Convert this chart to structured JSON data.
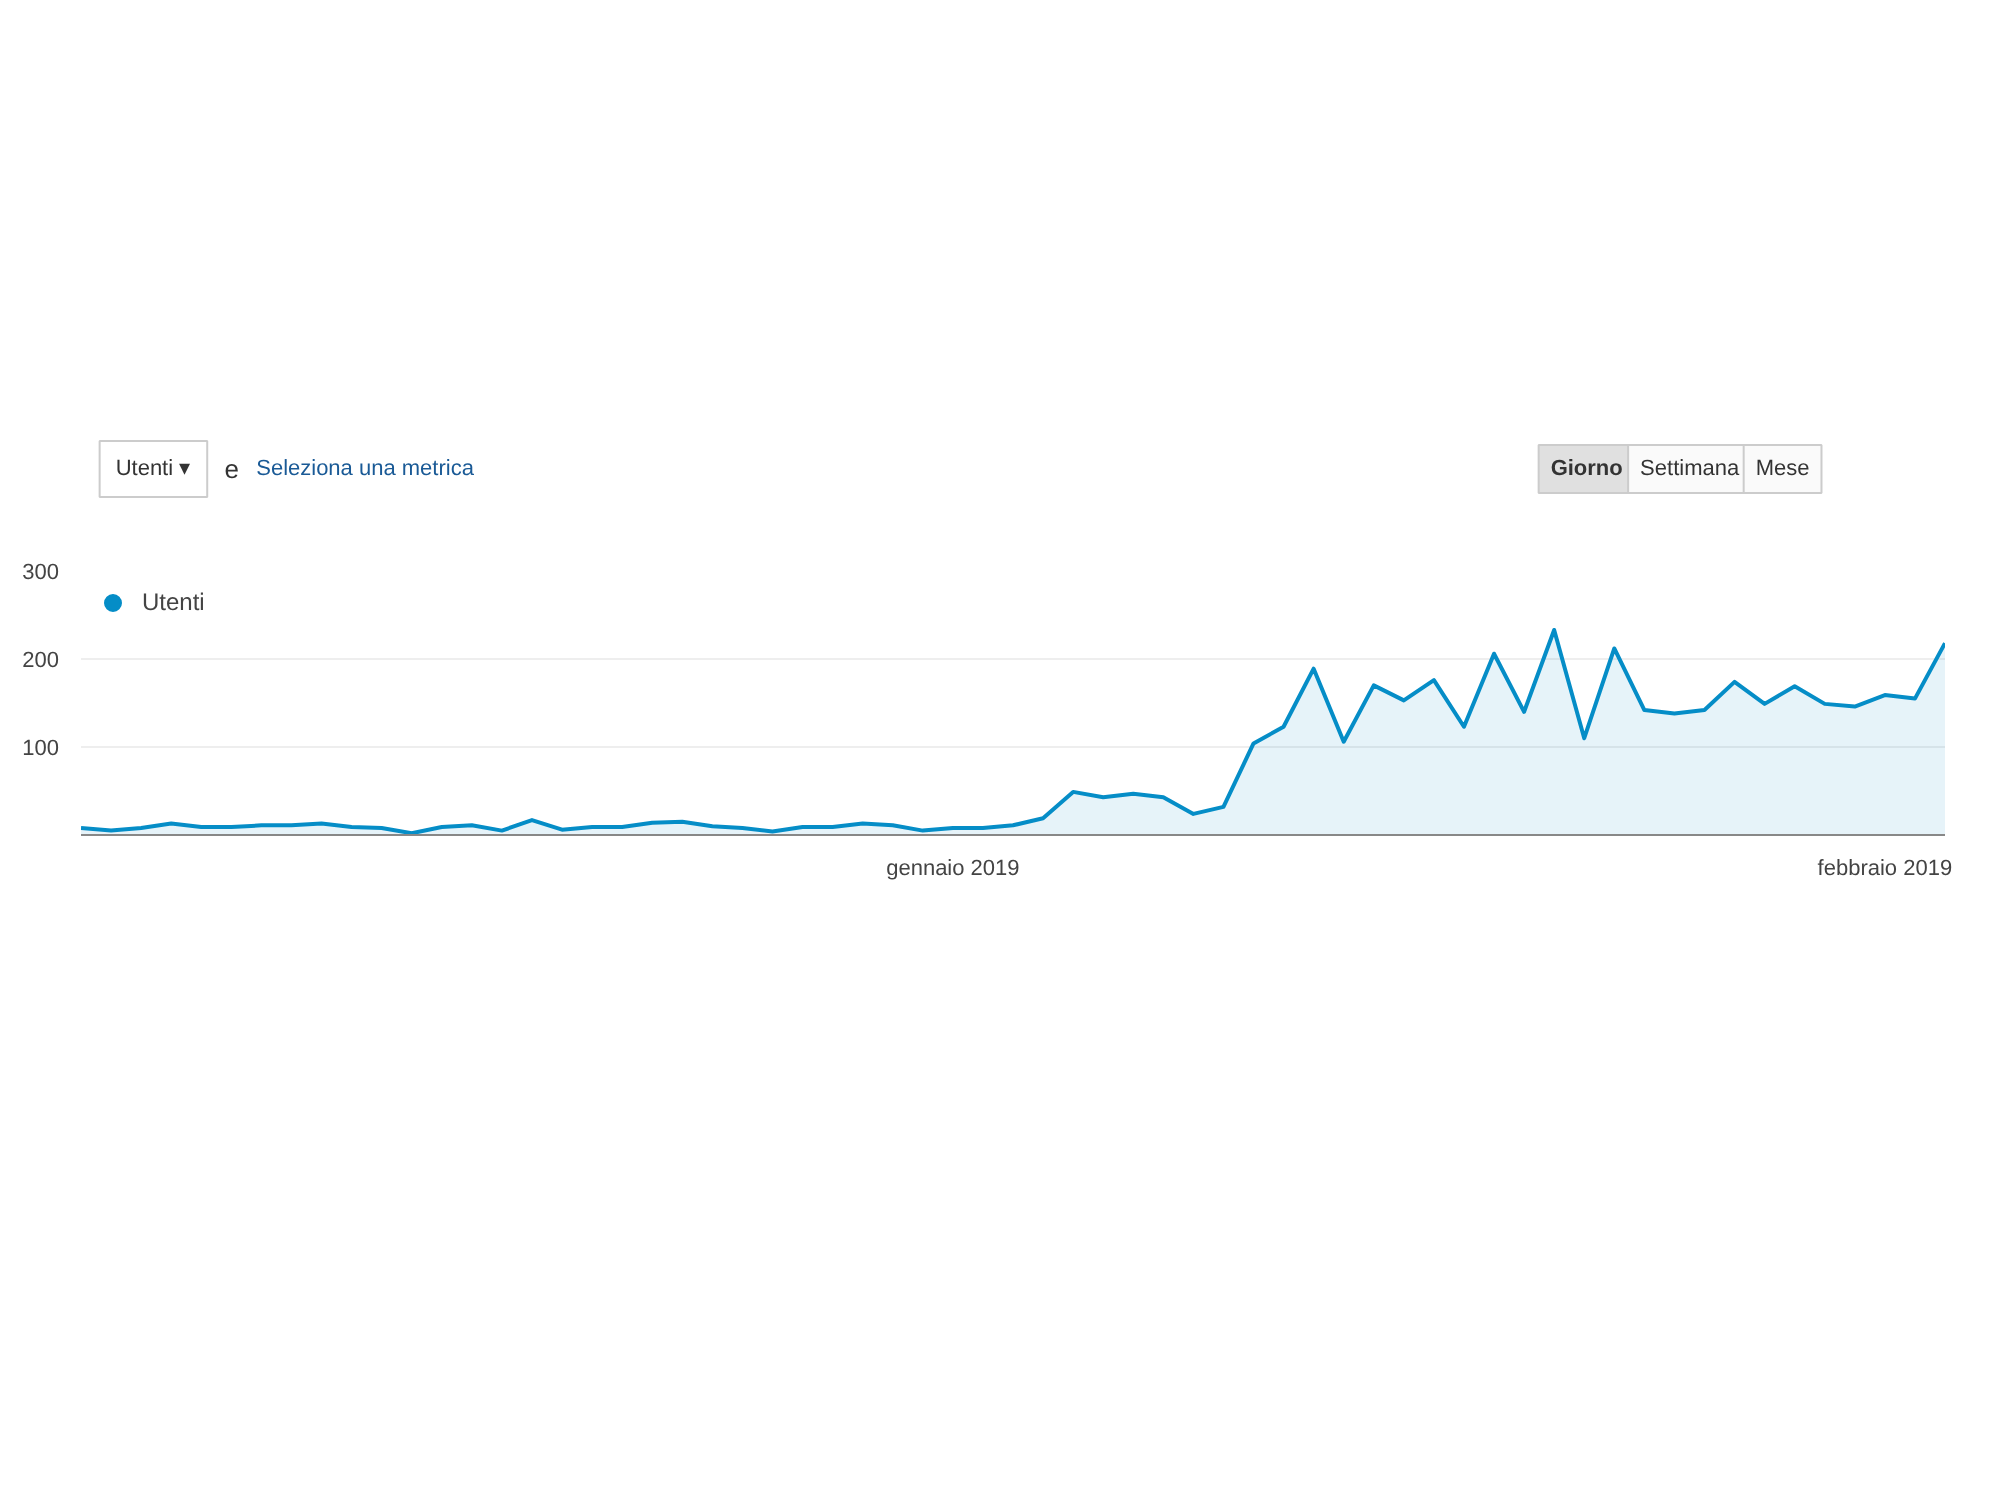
{
  "chart_data": {
    "type": "area",
    "annotations": [
      "Utenti ▾",
      "e",
      "Seleziona una metrica",
      "Giorno",
      "Settimana",
      "Mese"
    ],
    "x": [
      "2018-12-03",
      "2018-12-04",
      "2018-12-05",
      "2018-12-06",
      "2018-12-07",
      "2018-12-08",
      "2018-12-09",
      "2018-12-10",
      "2018-12-11",
      "2018-12-12",
      "2018-12-13",
      "2018-12-14",
      "2018-12-15",
      "2018-12-16",
      "2018-12-17",
      "2018-12-18",
      "2018-12-19",
      "2018-12-20",
      "2018-12-21",
      "2018-12-22",
      "2018-12-23",
      "2018-12-24",
      "2018-12-25",
      "2018-12-26",
      "2018-12-27",
      "2018-12-28",
      "2018-12-29",
      "2018-12-30",
      "2018-12-31",
      "2019-01-01",
      "2019-01-02",
      "2019-01-03",
      "2019-01-04",
      "2019-01-05",
      "2019-01-06",
      "2019-01-07",
      "2019-01-08",
      "2019-01-09",
      "2019-01-10",
      "2019-01-11",
      "2019-01-12",
      "2019-01-13",
      "2019-01-14",
      "2019-01-15",
      "2019-01-16",
      "2019-01-17",
      "2019-01-18",
      "2019-01-19",
      "2019-01-20",
      "2019-01-21",
      "2019-01-22",
      "2019-01-23",
      "2019-01-24",
      "2019-01-25",
      "2019-01-26",
      "2019-01-27",
      "2019-01-28",
      "2019-01-29",
      "2019-01-30",
      "2019-01-31",
      "2019-02-01",
      "2019-02-02",
      "2019-02-03"
    ],
    "series": [
      {
        "name": "Utenti",
        "color": "#058dc7",
        "values": [
          8,
          5,
          8,
          13,
          9,
          9,
          11,
          11,
          13,
          9,
          8,
          2,
          9,
          11,
          5,
          17,
          6,
          9,
          9,
          14,
          15,
          10,
          8,
          4,
          9,
          9,
          13,
          11,
          5,
          8,
          8,
          11,
          19,
          49,
          43,
          47,
          43,
          24,
          32,
          104,
          123,
          189,
          106,
          170,
          153,
          176,
          123,
          206,
          140,
          233,
          110,
          212,
          142,
          138,
          142,
          174,
          149,
          169,
          149,
          146,
          159,
          155,
          218
        ]
      }
    ],
    "xlim": [
      "2018-12-03",
      "2019-02-03"
    ],
    "xticks": [
      {
        "value": "2019-01-01",
        "label": "gennaio 2019"
      },
      {
        "value": "2019-02-01",
        "label": "febbraio 2019"
      }
    ],
    "ylim": [
      0,
      300
    ],
    "yticks": [
      {
        "value": 0,
        "label": null
      },
      100,
      200,
      300
    ],
    "grid": "y",
    "legend": "top left",
    "marker": "none"
  }
}
